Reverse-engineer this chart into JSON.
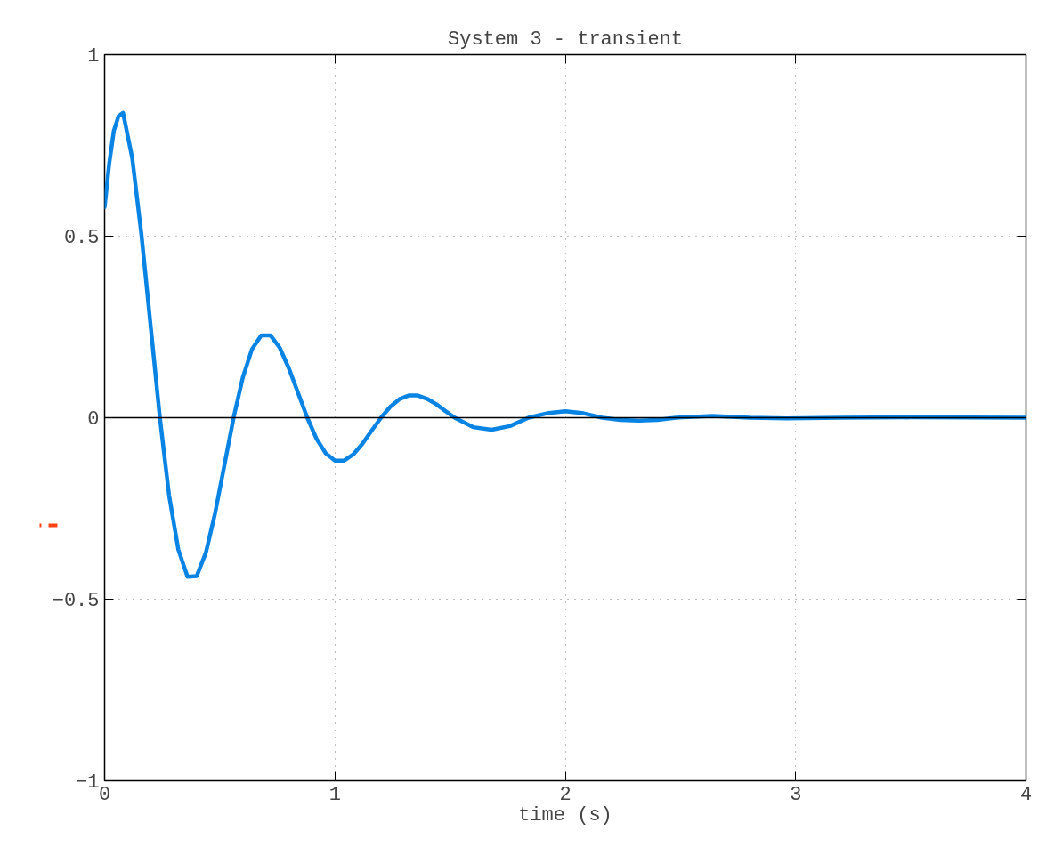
{
  "chart_data": {
    "type": "line",
    "title": "System 3 - transient",
    "xlabel": "time (s)",
    "x": [
      0,
      0.02,
      0.04,
      0.06,
      0.08,
      0.12,
      0.16,
      0.2,
      0.24,
      0.28,
      0.32,
      0.36,
      0.4,
      0.44,
      0.48,
      0.52,
      0.56,
      0.6,
      0.64,
      0.68,
      0.72,
      0.76,
      0.8,
      0.84,
      0.88,
      0.92,
      0.96,
      1.0,
      1.04,
      1.08,
      1.12,
      1.16,
      1.2,
      1.24,
      1.28,
      1.32,
      1.36,
      1.4,
      1.44,
      1.48,
      1.52,
      1.6,
      1.68,
      1.76,
      1.84,
      1.92,
      2.0,
      2.08,
      2.16,
      2.24,
      2.32,
      2.4,
      2.48,
      2.64,
      2.8,
      2.96,
      3.2,
      3.5,
      4.0
    ],
    "series": [
      {
        "color": "#0a84e4",
        "values": [
          0.58,
          0.7,
          0.79,
          0.83,
          0.84,
          0.715,
          0.504,
          0.252,
          0,
          -0.214,
          -0.363,
          -0.438,
          -0.436,
          -0.371,
          -0.262,
          -0.131,
          0,
          0.111,
          0.189,
          0.227,
          0.227,
          0.193,
          0.136,
          0.068,
          0,
          -0.058,
          -0.098,
          -0.118,
          -0.118,
          -0.101,
          -0.071,
          -0.035,
          0,
          0.03,
          0.051,
          0.061,
          0.061,
          0.052,
          0.037,
          0.018,
          0,
          -0.026,
          -0.033,
          -0.023,
          0,
          0.012,
          0.018,
          0.012,
          0,
          -0.006,
          -0.008,
          -0.006,
          0,
          0.005,
          0,
          -0.002,
          0,
          0.001,
          0
        ]
      }
    ],
    "xlim": [
      0,
      4
    ],
    "ylim": [
      -1,
      1
    ],
    "xticks": [
      0,
      1,
      2,
      3,
      4
    ],
    "yticks": [
      -1,
      -0.5,
      0,
      0.5,
      1
    ],
    "grid": true,
    "line_style": "solid",
    "ref_lines": [
      {
        "axis": "y",
        "value": 0,
        "color": "#000000",
        "line_style": "solid"
      }
    ]
  }
}
